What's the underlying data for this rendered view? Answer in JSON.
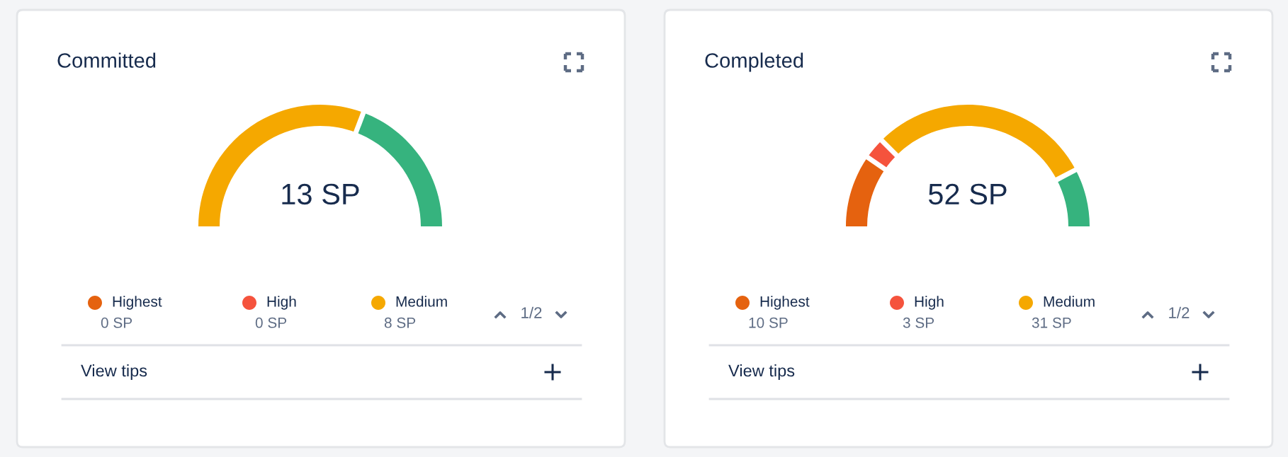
{
  "chart_data": [
    {
      "type": "donut",
      "title": "Committed",
      "categories": [
        "Highest",
        "High",
        "Medium",
        null
      ],
      "values": [
        0,
        0,
        8,
        5
      ],
      "colors": [
        "#e5620f",
        "#f5533d",
        "#f5a800",
        "#36b37e"
      ],
      "value_labels": [
        "0 SP",
        "0 SP",
        "8 SP",
        null
      ],
      "legend": "bottom",
      "annotations": [
        "13 SP",
        "1/2",
        "View tips"
      ]
    },
    {
      "type": "donut",
      "title": "Completed",
      "categories": [
        "Highest",
        "High",
        "Medium",
        null
      ],
      "values": [
        10,
        3,
        31,
        8
      ],
      "colors": [
        "#e5620f",
        "#f5533d",
        "#f5a800",
        "#36b37e"
      ],
      "value_labels": [
        "10 SP",
        "3 SP",
        "31 SP",
        null
      ],
      "legend": "bottom",
      "annotations": [
        "52 SP",
        "1/2",
        "View tips"
      ]
    }
  ]
}
